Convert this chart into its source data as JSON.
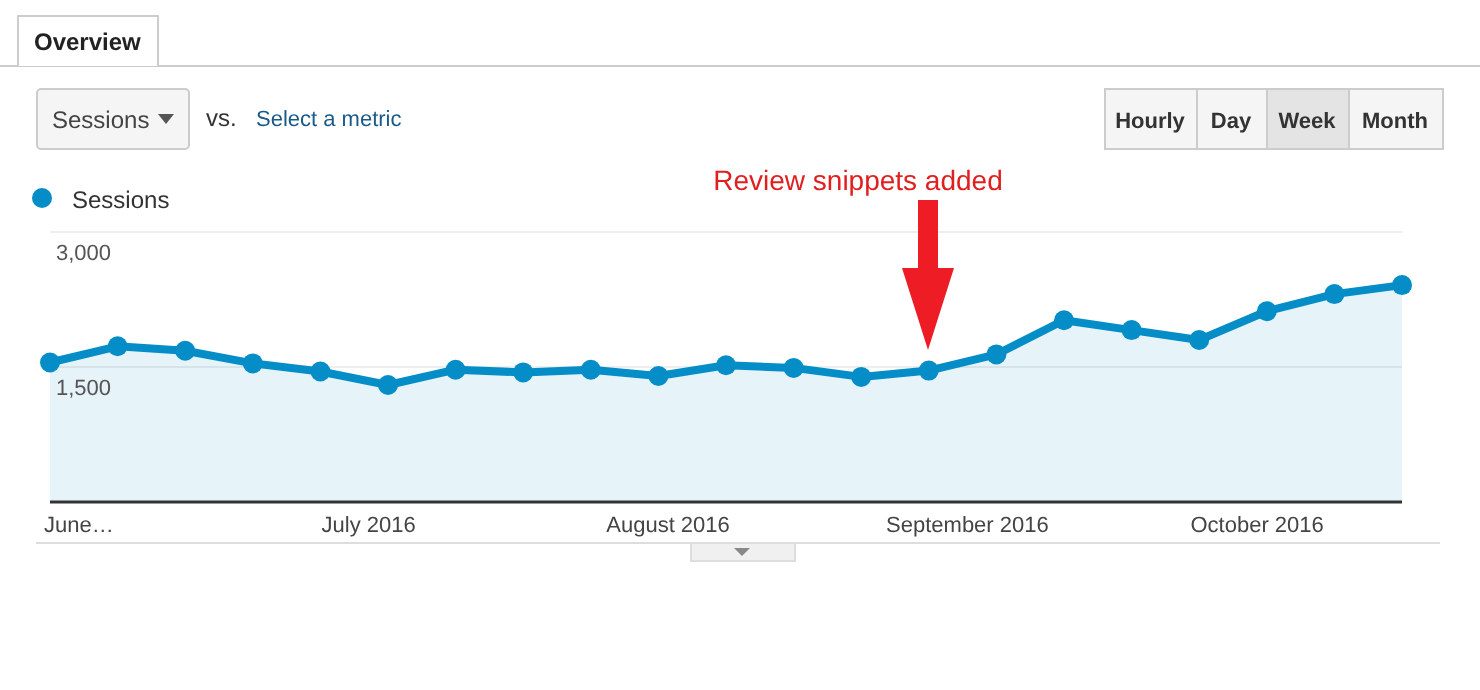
{
  "chart_data": {
    "type": "area",
    "x": [
      "2016-05-29",
      "2016-06-05",
      "2016-06-12",
      "2016-06-19",
      "2016-06-26",
      "2016-07-03",
      "2016-07-10",
      "2016-07-17",
      "2016-07-24",
      "2016-07-31",
      "2016-08-07",
      "2016-08-14",
      "2016-08-21",
      "2016-08-28",
      "2016-09-04",
      "2016-09-11",
      "2016-09-18",
      "2016-09-25",
      "2016-10-02",
      "2016-10-09",
      "2016-10-16"
    ],
    "series": [
      {
        "name": "Sessions",
        "color": "#058dc7",
        "values": [
          1550,
          1730,
          1680,
          1540,
          1450,
          1300,
          1470,
          1440,
          1470,
          1400,
          1520,
          1490,
          1390,
          1460,
          1640,
          2020,
          1910,
          1800,
          2120,
          2310,
          2410
        ]
      }
    ],
    "xlim": [
      "2016-05-29",
      "2016-10-16"
    ],
    "xticks": [
      {
        "value": "2016-06-01",
        "label": "June…"
      },
      {
        "value": "2016-07-01",
        "label": "July 2016"
      },
      {
        "value": "2016-08-01",
        "label": "August 2016"
      },
      {
        "value": "2016-09-01",
        "label": "September 2016"
      },
      {
        "value": "2016-10-01",
        "label": "October 2016"
      }
    ],
    "ylim": [
      0,
      3000
    ],
    "yticks": [
      {
        "value": 1500,
        "label": "1,500"
      },
      {
        "value": 3000,
        "label": "3,000"
      }
    ],
    "grid": "y",
    "legend": "top left",
    "marker": "circle",
    "line_style": "solid",
    "annotations": [
      "Review snippets added",
      "Overview",
      "Sessions",
      "vs.",
      "Select a metric",
      "Hourly",
      "Day",
      "Week",
      "Month"
    ]
  }
}
